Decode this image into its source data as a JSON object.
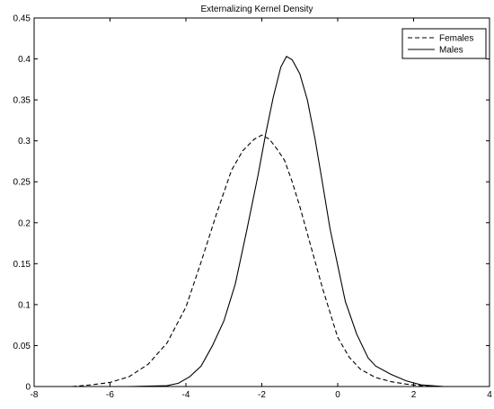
{
  "chart_data": {
    "type": "line",
    "title": "Externalizing Kernel Density",
    "xlabel": "",
    "ylabel": "",
    "xlim": [
      -8,
      4
    ],
    "ylim": [
      0,
      0.45
    ],
    "xticks": [
      -8,
      -6,
      -4,
      -2,
      0,
      2,
      4
    ],
    "yticks": [
      0,
      0.05,
      0.1,
      0.15,
      0.2,
      0.25,
      0.3,
      0.35,
      0.4,
      0.45
    ],
    "grid": false,
    "legend_position": "top-right",
    "series": [
      {
        "name": "Females",
        "style": "dashed",
        "color": "#000000",
        "x": [
          -7.0,
          -6.5,
          -6.0,
          -5.5,
          -5.0,
          -4.5,
          -4.0,
          -3.6,
          -3.2,
          -2.8,
          -2.5,
          -2.2,
          -2.0,
          -1.8,
          -1.6,
          -1.4,
          -1.2,
          -1.0,
          -0.7,
          -0.4,
          -0.2,
          0.0,
          0.3,
          0.6,
          1.0,
          1.4,
          1.8,
          2.2,
          2.6
        ],
        "y": [
          0.0,
          0.002,
          0.005,
          0.012,
          0.027,
          0.053,
          0.097,
          0.152,
          0.21,
          0.264,
          0.288,
          0.302,
          0.307,
          0.302,
          0.29,
          0.276,
          0.25,
          0.22,
          0.17,
          0.12,
          0.09,
          0.06,
          0.036,
          0.021,
          0.011,
          0.006,
          0.003,
          0.001,
          0.0
        ]
      },
      {
        "name": "Males",
        "style": "solid",
        "color": "#000000",
        "x": [
          -5.5,
          -5.0,
          -4.5,
          -4.2,
          -3.9,
          -3.6,
          -3.3,
          -3.0,
          -2.7,
          -2.4,
          -2.1,
          -1.9,
          -1.7,
          -1.5,
          -1.35,
          -1.2,
          -1.0,
          -0.8,
          -0.6,
          -0.4,
          -0.2,
          0.0,
          0.2,
          0.5,
          0.8,
          1.0,
          1.4,
          1.8,
          2.2,
          2.8
        ],
        "y": [
          0.0,
          0.0005,
          0.001,
          0.004,
          0.012,
          0.025,
          0.05,
          0.08,
          0.125,
          0.19,
          0.258,
          0.308,
          0.353,
          0.39,
          0.403,
          0.399,
          0.382,
          0.35,
          0.303,
          0.248,
          0.192,
          0.148,
          0.104,
          0.064,
          0.035,
          0.025,
          0.015,
          0.007,
          0.002,
          0.0
        ]
      }
    ]
  }
}
